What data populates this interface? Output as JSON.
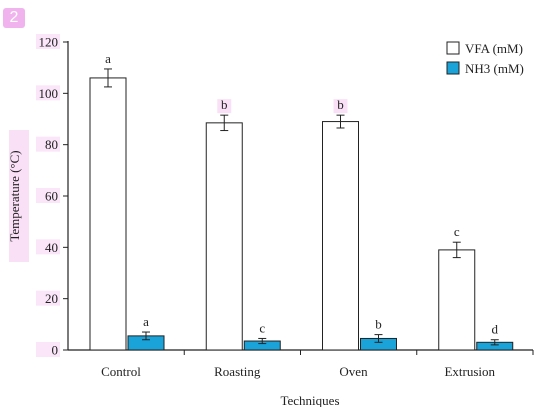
{
  "badge": "2",
  "chart_data": {
    "type": "bar",
    "categories": [
      "Control",
      "Roasting",
      "Oven",
      "Extrusion"
    ],
    "series": [
      {
        "name": "VFA (mM)",
        "values": [
          106,
          88.5,
          89,
          39
        ],
        "errors": [
          3.5,
          3,
          2.5,
          3
        ],
        "letters": [
          "a",
          "b",
          "b",
          "c"
        ],
        "color": "#ffffff"
      },
      {
        "name": "NH3 (mM)",
        "values": [
          5.5,
          3.5,
          4.5,
          3
        ],
        "errors": [
          1.5,
          1,
          1.5,
          1
        ],
        "letters": [
          "a",
          "c",
          "b",
          "d"
        ],
        "color": "#1aa3d9"
      }
    ],
    "title": "",
    "xlabel": "Techniques",
    "ylabel": "Temperature (°C)",
    "ylim": [
      0,
      120
    ],
    "yticks": [
      0,
      20,
      40,
      60,
      80,
      100,
      120
    ],
    "grid": false,
    "legend": "top-right",
    "highlight_color": "#f5c6f1"
  }
}
